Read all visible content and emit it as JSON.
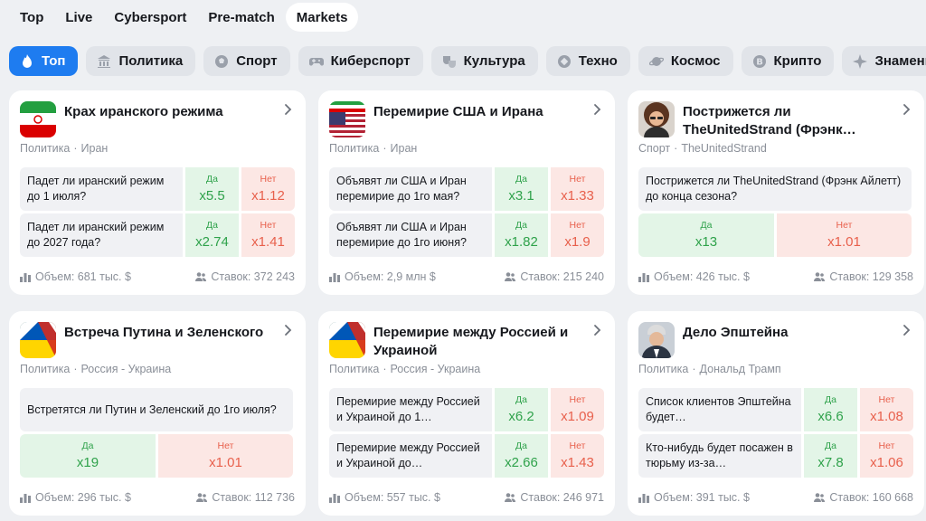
{
  "top_tabs": [
    "Top",
    "Live",
    "Cybersport",
    "Pre-match",
    "Markets"
  ],
  "categories": [
    "Топ",
    "Политика",
    "Спорт",
    "Киберспорт",
    "Культура",
    "Техно",
    "Космос",
    "Крипто",
    "Знаменитости"
  ],
  "cards": [
    {
      "title": "Крах иранского режима",
      "meta": [
        "Политика",
        "Иран"
      ],
      "rows": [
        {
          "q": "Падет ли иранский режим до 1 июля?",
          "yes": "Да",
          "yes_odd": "x5.5",
          "no": "Нет",
          "no_odd": "x1.12"
        },
        {
          "q": "Падет ли иранский режим до 2027 года?",
          "yes": "Да",
          "yes_odd": "x2.74",
          "no": "Нет",
          "no_odd": "x1.41"
        }
      ],
      "volume": "Объем: 681 тыс. $",
      "bets": "Ставок: 372 243"
    },
    {
      "title": "Перемирие США и Ирана",
      "meta": [
        "Политика",
        "Иран"
      ],
      "rows": [
        {
          "q": "Объявят ли США и Иран перемирие до 1го мая?",
          "yes": "Да",
          "yes_odd": "x3.1",
          "no": "Нет",
          "no_odd": "x1.33"
        },
        {
          "q": "Объявят ли США и Иран перемирие до 1го июня?",
          "yes": "Да",
          "yes_odd": "x1.82",
          "no": "Нет",
          "no_odd": "x1.9"
        }
      ],
      "volume": "Объем: 2,9 млн $",
      "bets": "Ставок: 215 240"
    },
    {
      "title": "Пострижется ли TheUnitedStrand (Фрэнк…",
      "meta": [
        "Спорт",
        "TheUnitedStrand"
      ],
      "single_q": "Пострижется ли TheUnitedStrand (Фрэнк Айлетт) до конца сезона?",
      "single": {
        "yes": "Да",
        "yes_odd": "x13",
        "no": "Нет",
        "no_odd": "x1.01"
      },
      "volume": "Объем: 426 тыс. $",
      "bets": "Ставок: 129 358"
    },
    {
      "title": "Встреча Путина и Зеленского",
      "meta": [
        "Политика",
        "Россия - Украина"
      ],
      "single_q": "Встретятся ли Путин и Зеленский до 1го июля?",
      "single": {
        "yes": "Да",
        "yes_odd": "x19",
        "no": "Нет",
        "no_odd": "x1.01"
      },
      "volume": "Объем: 296 тыс. $",
      "bets": "Ставок: 112 736"
    },
    {
      "title": "Перемирие между Россией и Украиной",
      "meta": [
        "Политика",
        "Россия - Украина"
      ],
      "rows": [
        {
          "q": "Перемирие между Россией и Украиной до 1…",
          "yes": "Да",
          "yes_odd": "x6.2",
          "no": "Нет",
          "no_odd": "x1.09"
        },
        {
          "q": "Перемирие между Россией и Украиной до…",
          "yes": "Да",
          "yes_odd": "x2.66",
          "no": "Нет",
          "no_odd": "x1.43"
        }
      ],
      "volume": "Объем: 557 тыс. $",
      "bets": "Ставок: 246 971"
    },
    {
      "title": "Дело Эпштейна",
      "meta": [
        "Политика",
        "Дональд Трамп"
      ],
      "rows": [
        {
          "q": "Список клиентов Эпштейна будет…",
          "yes": "Да",
          "yes_odd": "x6.6",
          "no": "Нет",
          "no_odd": "x1.08"
        },
        {
          "q": "Кто-нибудь будет посажен в тюрьму из-за…",
          "yes": "Да",
          "yes_odd": "x7.8",
          "no": "Нет",
          "no_odd": "x1.06"
        }
      ],
      "volume": "Объем: 391 тыс. $",
      "bets": "Ставок: 160 668"
    }
  ],
  "colors": {
    "accent": "#1e7cf0",
    "yes": "#2fa24b",
    "no": "#e8604c"
  }
}
